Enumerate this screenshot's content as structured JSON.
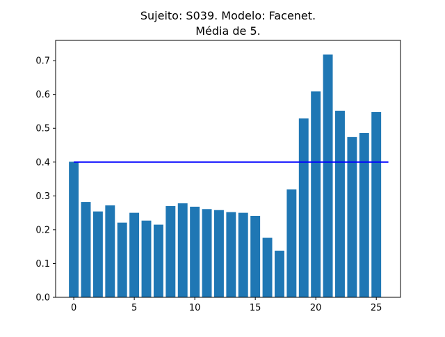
{
  "chart_data": {
    "type": "bar",
    "title_line1": "Sujeito: S039. Modelo: Facenet.",
    "title_line2": "Média de 5.",
    "xlabel": "",
    "ylabel": "",
    "x": [
      0,
      1,
      2,
      3,
      4,
      5,
      6,
      7,
      8,
      9,
      10,
      11,
      12,
      13,
      14,
      15,
      16,
      17,
      18,
      19,
      20,
      21,
      22,
      23,
      24,
      25
    ],
    "values": [
      0.401,
      0.282,
      0.254,
      0.272,
      0.221,
      0.25,
      0.227,
      0.215,
      0.27,
      0.278,
      0.268,
      0.261,
      0.258,
      0.252,
      0.25,
      0.241,
      0.176,
      0.138,
      0.319,
      0.529,
      0.609,
      0.718,
      0.552,
      0.474,
      0.486,
      0.548
    ],
    "threshold": {
      "value": 0.4,
      "x_from": 0,
      "x_to": 26,
      "color": "#0000ff"
    },
    "bar_color": "#1f77b4",
    "xlim": [
      -1.5,
      27.0
    ],
    "ylim": [
      0.0,
      0.76
    ],
    "xticks": [
      "0",
      "5",
      "10",
      "15",
      "20",
      "25"
    ],
    "xtick_values": [
      0,
      5,
      10,
      15,
      20,
      25
    ],
    "yticks": [
      "0.0",
      "0.1",
      "0.2",
      "0.3",
      "0.4",
      "0.5",
      "0.6",
      "0.7"
    ],
    "ytick_values": [
      0.0,
      0.1,
      0.2,
      0.3,
      0.4,
      0.5,
      0.6,
      0.7
    ],
    "grid": false,
    "legend": "none"
  }
}
